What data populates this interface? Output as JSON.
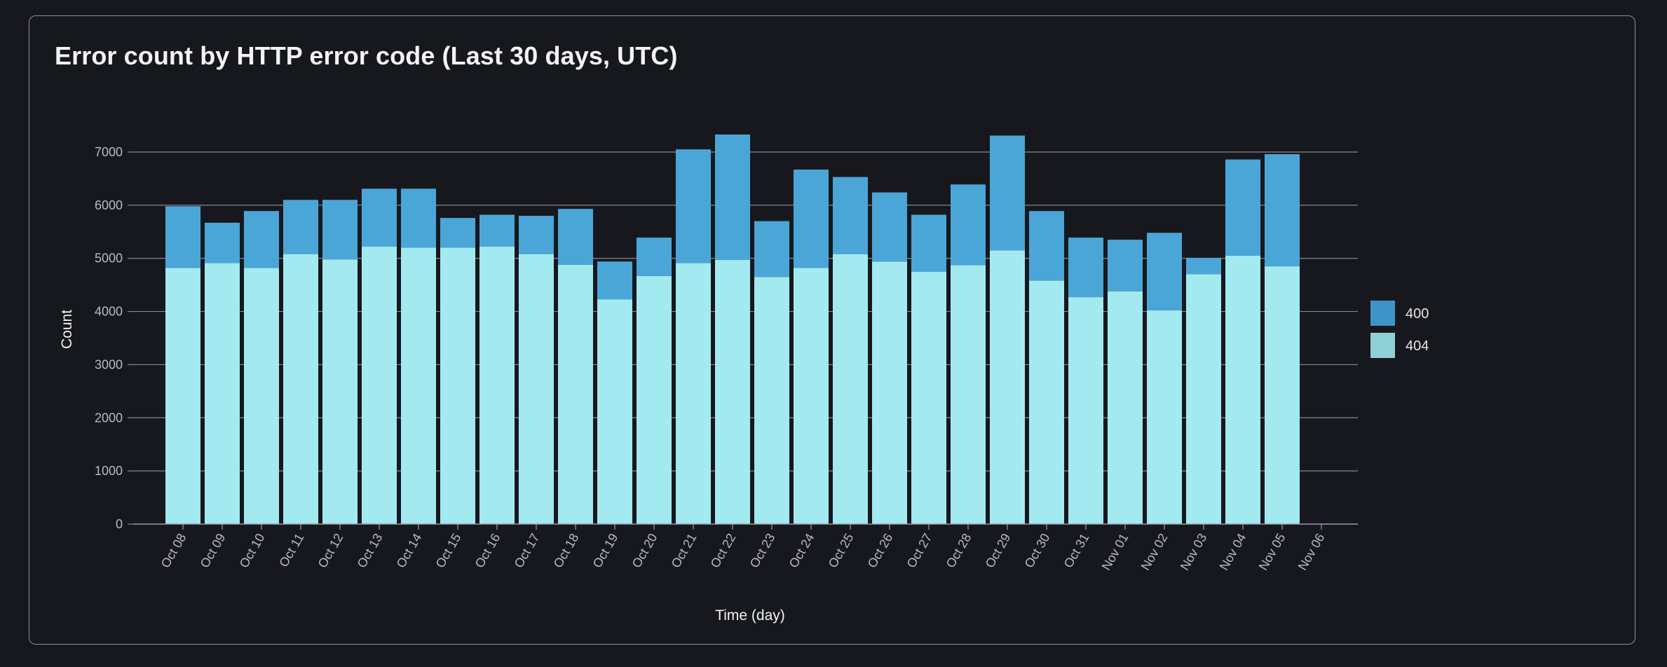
{
  "panel": {
    "title": "Error count by HTTP error code (Last 30 days, UTC)"
  },
  "chart_data": {
    "type": "bar",
    "stacked": true,
    "xlabel": "Time (day)",
    "ylabel": "Count",
    "ylim": [
      0,
      7000
    ],
    "yticks": [
      0,
      1000,
      2000,
      3000,
      4000,
      5000,
      6000,
      7000
    ],
    "grid": true,
    "legend_position": "right",
    "categories": [
      "Oct 08",
      "Oct 09",
      "Oct 10",
      "Oct 11",
      "Oct 12",
      "Oct 13",
      "Oct 14",
      "Oct 15",
      "Oct 16",
      "Oct 17",
      "Oct 18",
      "Oct 19",
      "Oct 20",
      "Oct 21",
      "Oct 22",
      "Oct 23",
      "Oct 24",
      "Oct 25",
      "Oct 26",
      "Oct 27",
      "Oct 28",
      "Oct 29",
      "Oct 30",
      "Oct 31",
      "Nov 01",
      "Nov 02",
      "Nov 03",
      "Nov 04",
      "Nov 05",
      "Nov 06"
    ],
    "series": [
      {
        "name": "404",
        "color": "#a2eaf0",
        "legend_color": "#8fcfd6",
        "values": [
          4820,
          4910,
          4820,
          5080,
          4980,
          5220,
          5200,
          5200,
          5220,
          5080,
          4880,
          4230,
          4670,
          4910,
          4970,
          4650,
          4820,
          5080,
          4940,
          4750,
          4870,
          5150,
          4580,
          4270,
          4380,
          4020,
          4700,
          5050,
          4850,
          0
        ]
      },
      {
        "name": "400",
        "color": "#4ba6d8",
        "legend_color": "#3f94c6",
        "values": [
          1160,
          760,
          1070,
          1020,
          1120,
          1090,
          1110,
          560,
          600,
          720,
          1050,
          710,
          720,
          2140,
          2360,
          1050,
          1850,
          1450,
          1300,
          1070,
          1520,
          2160,
          1310,
          1120,
          970,
          1460,
          310,
          1810,
          2110,
          0
        ]
      }
    ]
  }
}
